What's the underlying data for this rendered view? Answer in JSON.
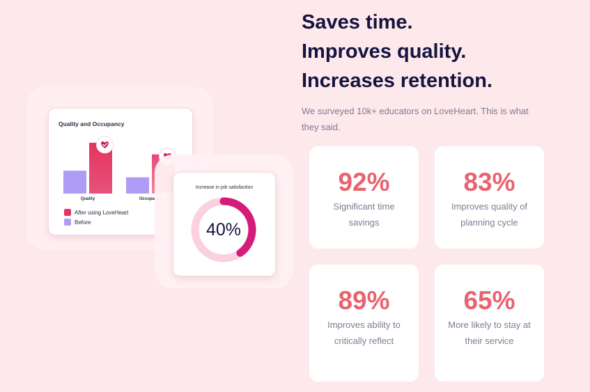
{
  "colors": {
    "background": "#fde8ec",
    "headline": "#14143e",
    "stat_accent": "#e8636f",
    "after_bar": "#e3345e",
    "before_bar": "#ae9cf7",
    "ring_fill": "#d61c7b",
    "ring_track": "#fbd0df"
  },
  "headline": {
    "line1": "Saves time.",
    "line2": "Improves quality.",
    "line3": "Increases retention."
  },
  "subtitle": "We surveyed 10k+ educators on LoveHeart. This is what they said.",
  "stats": [
    {
      "value": "92%",
      "label": "Significant time savings"
    },
    {
      "value": "83%",
      "label": "Improves quality of planning cycle"
    },
    {
      "value": "89%",
      "label": "Improves ability to critically reflect"
    },
    {
      "value": "65%",
      "label": "More likely to stay at their service"
    }
  ],
  "chart_data": [
    {
      "type": "bar",
      "title": "Quality and Occupancy",
      "categories": [
        "Quality",
        "Occupancy"
      ],
      "series": [
        {
          "name": "After using LoveHeart",
          "values": [
            100,
            77
          ],
          "color": "#e3345e",
          "icon": "heart-badge-icon"
        },
        {
          "name": "Before",
          "values": [
            45,
            32
          ],
          "color": "#ae9cf7"
        }
      ],
      "ylim": [
        0,
        100
      ],
      "legend_position": "bottom-left",
      "grid": false
    },
    {
      "type": "pie",
      "title": "Increase in job satisfaction",
      "value_label": "40%",
      "values": [
        40,
        60
      ],
      "colors": [
        "#d61c7b",
        "#fbd0df"
      ]
    }
  ]
}
